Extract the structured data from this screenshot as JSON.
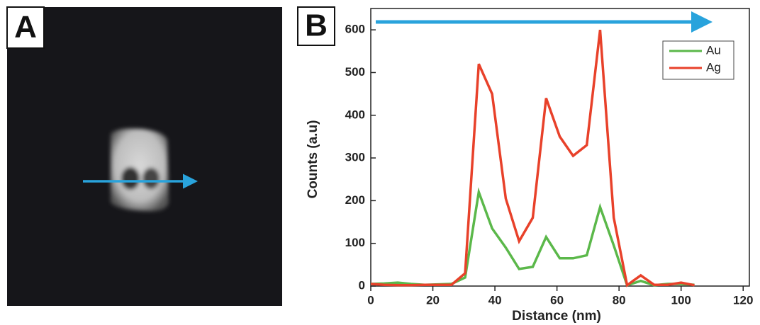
{
  "panel_labels": {
    "a": "A",
    "b": "B"
  },
  "chart_data": {
    "type": "line",
    "xlabel": "Distance (nm)",
    "ylabel": "Counts (a.u)",
    "x": [
      0,
      4.3,
      8.7,
      13,
      17.4,
      21.7,
      26,
      30.4,
      34.8,
      39.1,
      43.5,
      47.8,
      52.2,
      56.5,
      60.9,
      65.2,
      69.6,
      73.9,
      78.3,
      82.6,
      87,
      91.3,
      95.7,
      100,
      104.3
    ],
    "series": [
      {
        "name": "Au",
        "color": "#5bb84a",
        "values": [
          5,
          6,
          8,
          5,
          3,
          4,
          5,
          20,
          220,
          135,
          90,
          40,
          45,
          115,
          65,
          65,
          72,
          185,
          95,
          2,
          12,
          2,
          5,
          5,
          3
        ]
      },
      {
        "name": "Ag",
        "color": "#e8412a",
        "values": [
          5,
          3,
          2,
          2,
          3,
          3,
          3,
          30,
          520,
          450,
          205,
          105,
          160,
          440,
          350,
          305,
          330,
          600,
          160,
          2,
          25,
          3,
          3,
          8,
          2
        ]
      }
    ],
    "xlim": [
      0,
      122
    ],
    "ylim": [
      0,
      650
    ],
    "xticks": [
      0,
      20,
      40,
      60,
      80,
      100,
      120
    ],
    "yticks": [
      0,
      100,
      200,
      300,
      400,
      500,
      600
    ],
    "legend": "upper right",
    "grid": false
  }
}
